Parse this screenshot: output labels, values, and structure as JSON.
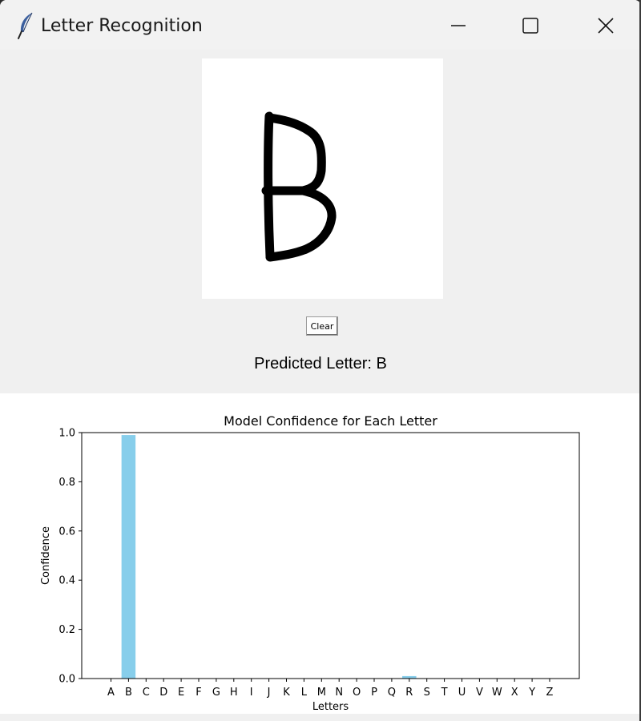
{
  "window": {
    "title": "Letter Recognition"
  },
  "icons": {
    "app": "feather-icon",
    "minimize": "minimize-icon",
    "maximize": "maximize-icon",
    "close": "close-icon"
  },
  "drawing": {
    "drawn_letter": "B"
  },
  "controls": {
    "clear_label": "Clear"
  },
  "prediction": {
    "label": "Predicted Letter: ",
    "value": "B"
  },
  "colors": {
    "bar": "#87ceeb",
    "plot_background": "#ffffff",
    "window_background": "#f0f0f0"
  },
  "chart_data": {
    "type": "bar",
    "title": "Model Confidence for Each Letter",
    "xlabel": "Letters",
    "ylabel": "Confidence",
    "ylim": [
      0,
      1.0
    ],
    "yticks": [
      "0.0",
      "0.2",
      "0.4",
      "0.6",
      "0.8",
      "1.0"
    ],
    "categories": [
      "A",
      "B",
      "C",
      "D",
      "E",
      "F",
      "G",
      "H",
      "I",
      "J",
      "K",
      "L",
      "M",
      "N",
      "O",
      "P",
      "Q",
      "R",
      "S",
      "T",
      "U",
      "V",
      "W",
      "X",
      "Y",
      "Z"
    ],
    "values": [
      0.0,
      0.99,
      0.0,
      0.0,
      0.0,
      0.0,
      0.0,
      0.0,
      0.0,
      0.0,
      0.0,
      0.0,
      0.0,
      0.0,
      0.0,
      0.0,
      0.0,
      0.01,
      0.0,
      0.0,
      0.0,
      0.0,
      0.0,
      0.0,
      0.0,
      0.0
    ],
    "grid": false,
    "legend": "none"
  }
}
